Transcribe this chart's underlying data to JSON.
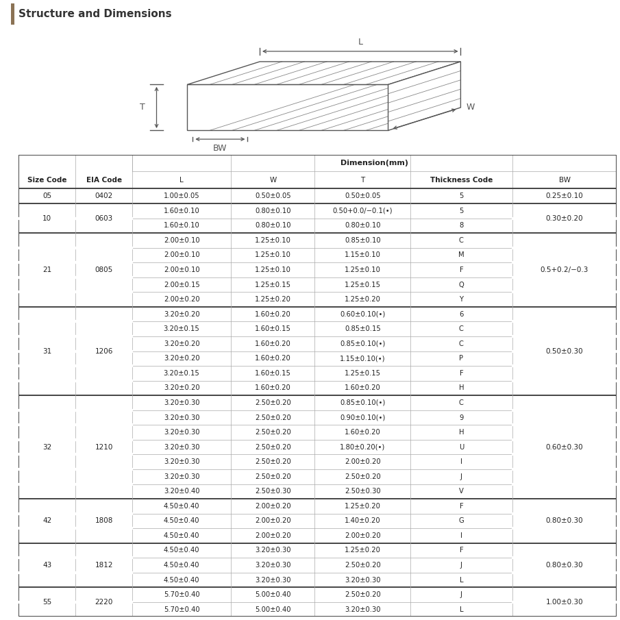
{
  "title": "Structure and Dimensions",
  "header_bg": "#e8e4de",
  "title_bar_color": "#8B7355",
  "col_headers": [
    "Size Code",
    "EIA Code",
    "L",
    "W",
    "T",
    "Thickness Code",
    "BW"
  ],
  "dimension_header": "Dimension(mm)",
  "rows": [
    {
      "size": "05",
      "eia": "0402",
      "L": "1.00±0.05",
      "W": "0.50±0.05",
      "T": "0.50±0.05",
      "tc": "5",
      "BW": "0.25±0.10",
      "size_span": 1
    },
    {
      "size": "10",
      "eia": "0603",
      "L": "1.60±0.10",
      "W": "0.80±0.10",
      "T": "0.50+0.0/−0.1(•)",
      "tc": "5",
      "BW": "0.30±0.20",
      "size_span": 2
    },
    {
      "size": "",
      "eia": "",
      "L": "1.60±0.10",
      "W": "0.80±0.10",
      "T": "0.80±0.10",
      "tc": "8",
      "BW": "",
      "size_span": 0
    },
    {
      "size": "21",
      "eia": "0805",
      "L": "2.00±0.10",
      "W": "1.25±0.10",
      "T": "0.85±0.10",
      "tc": "C",
      "BW": "0.5+0.2/−0.3",
      "size_span": 5
    },
    {
      "size": "",
      "eia": "",
      "L": "2.00±0.10",
      "W": "1.25±0.10",
      "T": "1.15±0.10",
      "tc": "M",
      "BW": "",
      "size_span": 0
    },
    {
      "size": "",
      "eia": "",
      "L": "2.00±0.10",
      "W": "1.25±0.10",
      "T": "1.25±0.10",
      "tc": "F",
      "BW": "",
      "size_span": 0
    },
    {
      "size": "",
      "eia": "",
      "L": "2.00±0.15",
      "W": "1.25±0.15",
      "T": "1.25±0.15",
      "tc": "Q",
      "BW": "",
      "size_span": 0
    },
    {
      "size": "",
      "eia": "",
      "L": "2.00±0.20",
      "W": "1.25±0.20",
      "T": "1.25±0.20",
      "tc": "Y",
      "BW": "",
      "size_span": 0
    },
    {
      "size": "31",
      "eia": "1206",
      "L": "3.20±0.20",
      "W": "1.60±0.20",
      "T": "0.60±0.10(•)",
      "tc": "6",
      "BW": "0.50±0.30",
      "size_span": 6
    },
    {
      "size": "",
      "eia": "",
      "L": "3.20±0.15",
      "W": "1.60±0.15",
      "T": "0.85±0.15",
      "tc": "C",
      "BW": "",
      "size_span": 0
    },
    {
      "size": "",
      "eia": "",
      "L": "3.20±0.20",
      "W": "1.60±0.20",
      "T": "0.85±0.10(•)",
      "tc": "C",
      "BW": "",
      "size_span": 0
    },
    {
      "size": "",
      "eia": "",
      "L": "3.20±0.20",
      "W": "1.60±0.20",
      "T": "1.15±0.10(•)",
      "tc": "P",
      "BW": "",
      "size_span": 0
    },
    {
      "size": "",
      "eia": "",
      "L": "3.20±0.15",
      "W": "1.60±0.15",
      "T": "1.25±0.15",
      "tc": "F",
      "BW": "",
      "size_span": 0
    },
    {
      "size": "",
      "eia": "",
      "L": "3.20±0.20",
      "W": "1.60±0.20",
      "T": "1.60±0.20",
      "tc": "H",
      "BW": "",
      "size_span": 0
    },
    {
      "size": "32",
      "eia": "1210",
      "L": "3.20±0.30",
      "W": "2.50±0.20",
      "T": "0.85±0.10(•)",
      "tc": "C",
      "BW": "0.60±0.30",
      "size_span": 7
    },
    {
      "size": "",
      "eia": "",
      "L": "3.20±0.30",
      "W": "2.50±0.20",
      "T": "0.90±0.10(•)",
      "tc": "9",
      "BW": "",
      "size_span": 0
    },
    {
      "size": "",
      "eia": "",
      "L": "3.20±0.30",
      "W": "2.50±0.20",
      "T": "1.60±0.20",
      "tc": "H",
      "BW": "",
      "size_span": 0
    },
    {
      "size": "",
      "eia": "",
      "L": "3.20±0.30",
      "W": "2.50±0.20",
      "T": "1.80±0.20(•)",
      "tc": "U",
      "BW": "",
      "size_span": 0
    },
    {
      "size": "",
      "eia": "",
      "L": "3.20±0.30",
      "W": "2.50±0.20",
      "T": "2.00±0.20",
      "tc": "I",
      "BW": "",
      "size_span": 0
    },
    {
      "size": "",
      "eia": "",
      "L": "3.20±0.30",
      "W": "2.50±0.20",
      "T": "2.50±0.20",
      "tc": "J",
      "BW": "",
      "size_span": 0
    },
    {
      "size": "",
      "eia": "",
      "L": "3.20±0.40",
      "W": "2.50±0.30",
      "T": "2.50±0.30",
      "tc": "V",
      "BW": "",
      "size_span": 0
    },
    {
      "size": "42",
      "eia": "1808",
      "L": "4.50±0.40",
      "W": "2.00±0.20",
      "T": "1.25±0.20",
      "tc": "F",
      "BW": "0.80±0.30",
      "size_span": 3
    },
    {
      "size": "",
      "eia": "",
      "L": "4.50±0.40",
      "W": "2.00±0.20",
      "T": "1.40±0.20",
      "tc": "G",
      "BW": "",
      "size_span": 0
    },
    {
      "size": "",
      "eia": "",
      "L": "4.50±0.40",
      "W": "2.00±0.20",
      "T": "2.00±0.20",
      "tc": "I",
      "BW": "",
      "size_span": 0
    },
    {
      "size": "43",
      "eia": "1812",
      "L": "4.50±0.40",
      "W": "3.20±0.30",
      "T": "1.25±0.20",
      "tc": "F",
      "BW": "0.80±0.30",
      "size_span": 3
    },
    {
      "size": "",
      "eia": "",
      "L": "4.50±0.40",
      "W": "3.20±0.30",
      "T": "2.50±0.20",
      "tc": "J",
      "BW": "",
      "size_span": 0
    },
    {
      "size": "",
      "eia": "",
      "L": "4.50±0.40",
      "W": "3.20±0.30",
      "T": "3.20±0.30",
      "tc": "L",
      "BW": "",
      "size_span": 0
    },
    {
      "size": "55",
      "eia": "2220",
      "L": "5.70±0.40",
      "W": "5.00±0.40",
      "T": "2.50±0.20",
      "tc": "J",
      "BW": "1.00±0.30",
      "size_span": 2
    },
    {
      "size": "",
      "eia": "",
      "L": "5.70±0.40",
      "W": "5.00±0.40",
      "T": "3.20±0.30",
      "tc": "L",
      "BW": "",
      "size_span": 0
    }
  ],
  "group_thick_after": [
    0,
    2,
    7,
    13,
    20,
    23,
    26
  ],
  "bg_color": "#ffffff",
  "line_color": "#aaaaaa",
  "thick_line_color": "#444444",
  "text_color": "#222222"
}
